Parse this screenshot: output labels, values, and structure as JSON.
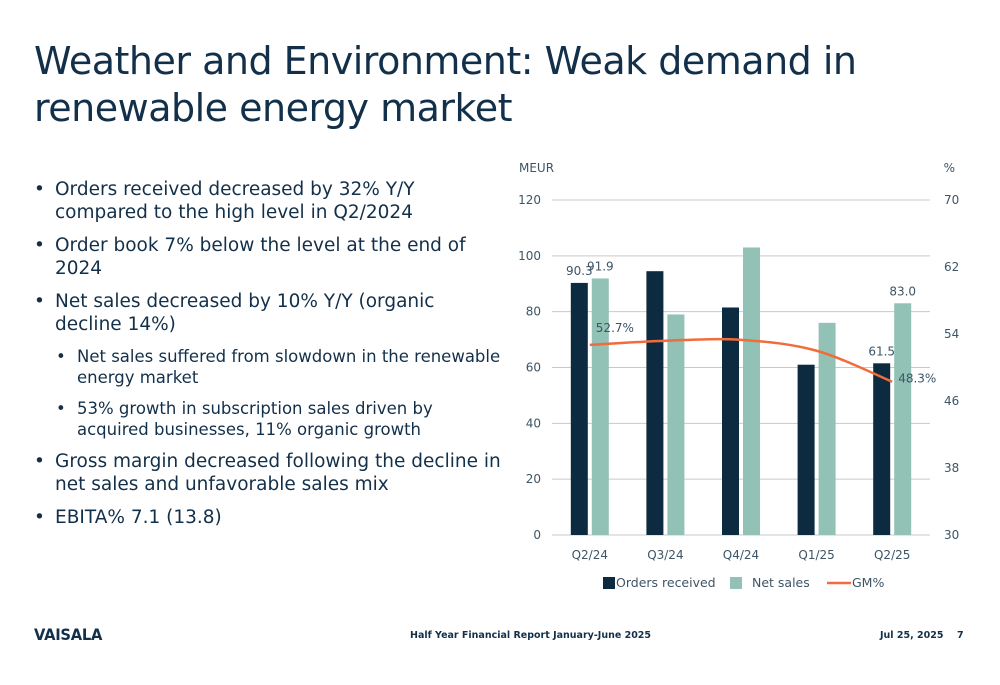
{
  "title": "Weather and Environment: Weak demand in renewable energy market",
  "bullets": [
    {
      "text": "Orders received decreased by 32% Y/Y compared to the high level in Q2/2024",
      "level": 1
    },
    {
      "text": "Order book 7% below the level at the end of 2024",
      "level": 1
    },
    {
      "text": "Net sales decreased by 10% Y/Y (organic decline 14%)",
      "level": 1
    },
    {
      "text": "Net sales suffered from slowdown in the renewable energy market",
      "level": 2
    },
    {
      "text": "53% growth in subscription sales driven by acquired businesses, 11% organic growth",
      "level": 2
    },
    {
      "text": "Gross margin decreased following the decline in net sales and unfavorable sales mix",
      "level": 1
    },
    {
      "text": "EBITA% 7.1 (13.8)",
      "level": 1
    }
  ],
  "footer": {
    "logo": "VAISALA",
    "report": "Half Year Financial Report January-June 2025",
    "date": "Jul 25, 2025",
    "page": "7"
  },
  "colors": {
    "orders": "#0d2b40",
    "net_sales": "#92c1b6",
    "gm": "#f26b3a",
    "grid": "#c9c9c9",
    "text": "#13304a"
  },
  "chart_data": {
    "type": "bar",
    "categories": [
      "Q2/24",
      "Q3/24",
      "Q4/24",
      "Q1/25",
      "Q2/25"
    ],
    "y_left_label": "MEUR",
    "y_right_label": "%",
    "ylim": [
      0,
      120
    ],
    "y_ticks": [
      0,
      20,
      40,
      60,
      80,
      100,
      120
    ],
    "y2lim": [
      30,
      70
    ],
    "y2_ticks": [
      30,
      38,
      46,
      54,
      62,
      70
    ],
    "grid": true,
    "legend_position": "bottom",
    "series": [
      {
        "name": "Orders received",
        "type": "bar",
        "values": [
          90.3,
          94.5,
          81.5,
          61.0,
          61.5
        ],
        "labels": [
          "90.3",
          "",
          "",
          "",
          "61.5"
        ]
      },
      {
        "name": "Net sales",
        "type": "bar",
        "values": [
          91.9,
          79.0,
          103.0,
          76.0,
          83.0
        ],
        "labels": [
          "91.9",
          "",
          "",
          "",
          "83.0"
        ]
      },
      {
        "name": "GM%",
        "type": "line",
        "axis": "right",
        "values": [
          52.7,
          53.2,
          53.3,
          52.0,
          48.3
        ],
        "labels": [
          "52.7%",
          "",
          "",
          "",
          "48.3%"
        ]
      }
    ]
  }
}
